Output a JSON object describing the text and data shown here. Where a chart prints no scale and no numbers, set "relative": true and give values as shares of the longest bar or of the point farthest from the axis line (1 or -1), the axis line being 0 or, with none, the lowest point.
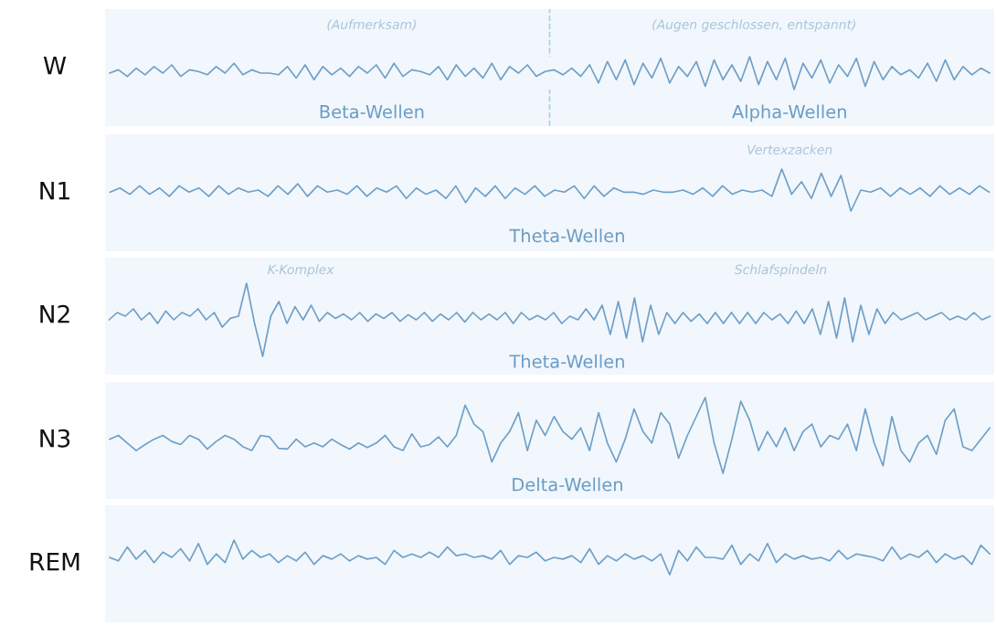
{
  "chart_data": [
    {
      "type": "line",
      "relative": true,
      "ylabel": "W",
      "color": "#6f9fc8",
      "annotations": [
        "(Aufmerksam)",
        "(Augen geschlossen, entspannt)",
        "Beta-Wellen",
        "Alpha-Wellen"
      ],
      "categories": [
        null,
        null,
        null,
        null,
        null,
        null,
        null,
        null,
        null,
        null,
        null,
        null,
        null,
        null,
        null,
        null,
        null,
        null,
        null,
        null,
        null,
        null,
        null,
        null,
        null,
        null,
        null,
        null,
        null,
        null,
        null,
        null,
        null,
        null,
        null,
        null,
        null,
        null,
        null,
        null,
        null,
        null,
        null,
        null,
        null,
        null,
        null,
        null,
        null,
        null,
        null,
        null,
        null,
        null,
        null,
        null,
        null,
        null,
        null,
        null,
        null,
        null,
        null,
        null,
        null,
        null,
        null,
        null,
        null,
        null,
        null,
        null,
        null,
        null,
        null,
        null,
        null,
        null,
        null,
        null,
        null,
        null,
        null,
        null,
        null,
        null,
        null,
        null,
        null,
        null,
        null,
        null,
        null,
        null,
        null,
        null,
        null,
        null,
        null,
        null
      ],
      "values": [
        0.5,
        0.6,
        0.4,
        0.65,
        0.45,
        0.7,
        0.5,
        0.75,
        0.4,
        0.6,
        0.55,
        0.45,
        0.7,
        0.5,
        0.8,
        0.45,
        0.6,
        0.5,
        0.5,
        0.45,
        0.7,
        0.35,
        0.75,
        0.3,
        0.7,
        0.45,
        0.65,
        0.4,
        0.7,
        0.5,
        0.75,
        0.35,
        0.8,
        0.4,
        0.6,
        0.55,
        0.45,
        0.7,
        0.3,
        0.75,
        0.4,
        0.65,
        0.35,
        0.8,
        0.3,
        0.7,
        0.5,
        0.75,
        0.4,
        0.55,
        0.6,
        0.45,
        0.65,
        0.4,
        0.75,
        0.2,
        0.85,
        0.3,
        0.9,
        0.15,
        0.8,
        0.35,
        0.95,
        0.2,
        0.7,
        0.4,
        0.85,
        0.1,
        0.9,
        0.3,
        0.75,
        0.25,
        1,
        0.15,
        0.85,
        0.3,
        0.95,
        0,
        0.8,
        0.35,
        0.9,
        0.2,
        0.75,
        0.4,
        0.95,
        0.1,
        0.85,
        0.3,
        0.7,
        0.45,
        0.6,
        0.35,
        0.8,
        0.25,
        0.9,
        0.3,
        0.7,
        0.45,
        0.65,
        0.5
      ]
    },
    {
      "type": "line",
      "relative": true,
      "ylabel": "N1",
      "color": "#6f9fc8",
      "annotations": [
        "Vertexzacken",
        "Theta-Wellen"
      ],
      "categories": [
        null,
        null,
        null,
        null,
        null,
        null,
        null,
        null,
        null,
        null,
        null,
        null,
        null,
        null,
        null,
        null,
        null,
        null,
        null,
        null,
        null,
        null,
        null,
        null,
        null,
        null,
        null,
        null,
        null,
        null,
        null,
        null,
        null,
        null,
        null,
        null,
        null,
        null,
        null,
        null,
        null,
        null,
        null,
        null,
        null,
        null,
        null,
        null,
        null,
        null,
        null,
        null,
        null,
        null,
        null,
        null,
        null,
        null,
        null,
        null,
        null,
        null,
        null,
        null,
        null,
        null,
        null,
        null,
        null,
        null,
        null,
        null,
        null,
        null,
        null,
        null,
        null,
        null,
        null,
        null,
        null,
        null,
        null,
        null,
        null,
        null,
        null,
        null,
        null,
        null
      ],
      "values": [
        0.45,
        0.55,
        0.4,
        0.6,
        0.4,
        0.55,
        0.35,
        0.6,
        0.45,
        0.55,
        0.35,
        0.6,
        0.4,
        0.55,
        0.45,
        0.5,
        0.35,
        0.6,
        0.4,
        0.65,
        0.35,
        0.6,
        0.45,
        0.5,
        0.4,
        0.6,
        0.35,
        0.55,
        0.45,
        0.6,
        0.3,
        0.55,
        0.4,
        0.5,
        0.3,
        0.6,
        0.2,
        0.55,
        0.35,
        0.6,
        0.3,
        0.55,
        0.4,
        0.6,
        0.35,
        0.5,
        0.45,
        0.6,
        0.3,
        0.6,
        0.35,
        0.55,
        0.45,
        0.45,
        0.4,
        0.5,
        0.45,
        0.45,
        0.5,
        0.4,
        0.55,
        0.35,
        0.6,
        0.4,
        0.5,
        0.45,
        0.5,
        0.35,
        1,
        0.4,
        0.7,
        0.3,
        0.9,
        0.35,
        0.85,
        0,
        0.5,
        0.45,
        0.55,
        0.35,
        0.55,
        0.4,
        0.55,
        0.35,
        0.6,
        0.4,
        0.55,
        0.4,
        0.6,
        0.45
      ]
    },
    {
      "type": "line",
      "relative": true,
      "ylabel": "N2",
      "color": "#6f9fc8",
      "annotations": [
        "K-Komplex",
        "Schlafspindeln",
        "Theta-Wellen"
      ],
      "categories": [
        null,
        null,
        null,
        null,
        null,
        null,
        null,
        null,
        null,
        null,
        null,
        null,
        null,
        null,
        null,
        null,
        null,
        null,
        null,
        null,
        null,
        null,
        null,
        null,
        null,
        null,
        null,
        null,
        null,
        null,
        null,
        null,
        null,
        null,
        null,
        null,
        null,
        null,
        null,
        null,
        null,
        null,
        null,
        null,
        null,
        null,
        null,
        null,
        null,
        null,
        null,
        null,
        null,
        null,
        null,
        null,
        null,
        null,
        null,
        null,
        null,
        null,
        null,
        null,
        null,
        null,
        null,
        null,
        null,
        null,
        null,
        null,
        null,
        null,
        null,
        null,
        null,
        null,
        null,
        null,
        null,
        null,
        null,
        null,
        null,
        null,
        null,
        null,
        null,
        null,
        null,
        null,
        null,
        null,
        null,
        null,
        null,
        null,
        null,
        null,
        null,
        null,
        null,
        null,
        null,
        null,
        null,
        null,
        null,
        null
      ],
      "values": [
        0.5,
        0.6,
        0.55,
        0.65,
        0.5,
        0.6,
        0.45,
        0.62,
        0.5,
        0.6,
        0.55,
        0.65,
        0.5,
        0.6,
        0.4,
        0.52,
        0.55,
        1,
        0.45,
        0,
        0.55,
        0.75,
        0.45,
        0.68,
        0.5,
        0.7,
        0.48,
        0.6,
        0.52,
        0.58,
        0.5,
        0.6,
        0.48,
        0.58,
        0.52,
        0.6,
        0.48,
        0.57,
        0.5,
        0.6,
        0.48,
        0.58,
        0.5,
        0.6,
        0.47,
        0.6,
        0.5,
        0.58,
        0.5,
        0.6,
        0.45,
        0.6,
        0.5,
        0.56,
        0.5,
        0.6,
        0.45,
        0.55,
        0.5,
        0.65,
        0.5,
        0.7,
        0.3,
        0.75,
        0.25,
        0.8,
        0.2,
        0.7,
        0.3,
        0.6,
        0.45,
        0.6,
        0.48,
        0.58,
        0.45,
        0.6,
        0.45,
        0.6,
        0.45,
        0.6,
        0.45,
        0.6,
        0.5,
        0.58,
        0.45,
        0.62,
        0.45,
        0.65,
        0.3,
        0.75,
        0.25,
        0.8,
        0.2,
        0.7,
        0.3,
        0.65,
        0.45,
        0.6,
        0.5,
        0.55,
        0.6,
        0.5,
        0.55,
        0.6,
        0.5,
        0.55,
        0.5,
        0.6,
        0.5,
        0.55
      ]
    },
    {
      "type": "line",
      "relative": true,
      "ylabel": "N3",
      "color": "#6f9fc8",
      "annotations": [
        "Delta-Wellen"
      ],
      "categories": [
        null,
        null,
        null,
        null,
        null,
        null,
        null,
        null,
        null,
        null,
        null,
        null,
        null,
        null,
        null,
        null,
        null,
        null,
        null,
        null,
        null,
        null,
        null,
        null,
        null,
        null,
        null,
        null,
        null,
        null,
        null,
        null,
        null,
        null,
        null,
        null,
        null,
        null,
        null,
        null,
        null,
        null,
        null,
        null,
        null,
        null,
        null,
        null,
        null,
        null,
        null,
        null,
        null,
        null,
        null,
        null,
        null,
        null,
        null,
        null,
        null,
        null,
        null,
        null,
        null,
        null,
        null,
        null,
        null,
        null,
        null,
        null,
        null,
        null,
        null,
        null,
        null,
        null,
        null,
        null,
        null,
        null,
        null,
        null,
        null,
        null,
        null,
        null,
        null,
        null,
        null,
        null,
        null,
        null,
        null,
        null,
        null,
        null,
        null,
        null
      ],
      "values": [
        0.45,
        0.5,
        0.4,
        0.3,
        0.38,
        0.45,
        0.5,
        0.42,
        0.38,
        0.5,
        0.45,
        0.32,
        0.42,
        0.5,
        0.45,
        0.35,
        0.3,
        0.5,
        0.48,
        0.33,
        0.32,
        0.45,
        0.35,
        0.4,
        0.35,
        0.45,
        0.38,
        0.32,
        0.4,
        0.34,
        0.4,
        0.5,
        0.35,
        0.3,
        0.52,
        0.35,
        0.38,
        0.48,
        0.35,
        0.5,
        0.9,
        0.65,
        0.55,
        0.15,
        0.4,
        0.55,
        0.8,
        0.3,
        0.7,
        0.5,
        0.75,
        0.55,
        0.45,
        0.6,
        0.3,
        0.8,
        0.4,
        0.15,
        0.45,
        0.85,
        0.55,
        0.4,
        0.8,
        0.65,
        0.2,
        0.5,
        0.75,
        1,
        0.4,
        0,
        0.45,
        0.95,
        0.7,
        0.3,
        0.55,
        0.35,
        0.6,
        0.3,
        0.55,
        0.65,
        0.35,
        0.5,
        0.45,
        0.65,
        0.3,
        0.85,
        0.4,
        0.1,
        0.75,
        0.3,
        0.15,
        0.4,
        0.5,
        0.25,
        0.7,
        0.85,
        0.35,
        0.3,
        0.45,
        0.6
      ]
    },
    {
      "type": "line",
      "relative": true,
      "ylabel": "REM",
      "color": "#6f9fc8",
      "categories": [
        null,
        null,
        null,
        null,
        null,
        null,
        null,
        null,
        null,
        null,
        null,
        null,
        null,
        null,
        null,
        null,
        null,
        null,
        null,
        null,
        null,
        null,
        null,
        null,
        null,
        null,
        null,
        null,
        null,
        null,
        null,
        null,
        null,
        null,
        null,
        null,
        null,
        null,
        null,
        null,
        null,
        null,
        null,
        null,
        null,
        null,
        null,
        null,
        null,
        null,
        null,
        null,
        null,
        null,
        null,
        null,
        null,
        null,
        null,
        null,
        null,
        null,
        null,
        null,
        null,
        null,
        null,
        null,
        null,
        null,
        null,
        null,
        null,
        null,
        null,
        null,
        null,
        null,
        null,
        null,
        null,
        null,
        null,
        null,
        null,
        null,
        null,
        null,
        null,
        null,
        null,
        null,
        null,
        null,
        null,
        null,
        null,
        null,
        null,
        null
      ],
      "values": [
        0.5,
        0.4,
        0.8,
        0.45,
        0.7,
        0.35,
        0.65,
        0.5,
        0.75,
        0.4,
        0.9,
        0.3,
        0.6,
        0.35,
        1,
        0.45,
        0.7,
        0.5,
        0.6,
        0.35,
        0.55,
        0.4,
        0.65,
        0.3,
        0.55,
        0.45,
        0.6,
        0.4,
        0.55,
        0.45,
        0.5,
        0.3,
        0.7,
        0.5,
        0.6,
        0.5,
        0.65,
        0.5,
        0.8,
        0.55,
        0.6,
        0.5,
        0.55,
        0.45,
        0.7,
        0.3,
        0.55,
        0.5,
        0.65,
        0.4,
        0.5,
        0.45,
        0.55,
        0.35,
        0.75,
        0.3,
        0.55,
        0.4,
        0.6,
        0.45,
        0.55,
        0.4,
        0.6,
        0,
        0.7,
        0.4,
        0.8,
        0.5,
        0.5,
        0.45,
        0.85,
        0.3,
        0.6,
        0.4,
        0.9,
        0.35,
        0.6,
        0.45,
        0.55,
        0.45,
        0.5,
        0.4,
        0.7,
        0.45,
        0.6,
        0.55,
        0.5,
        0.4,
        0.8,
        0.45,
        0.6,
        0.5,
        0.7,
        0.35,
        0.6,
        0.45,
        0.55,
        0.3,
        0.85,
        0.6
      ]
    }
  ]
}
